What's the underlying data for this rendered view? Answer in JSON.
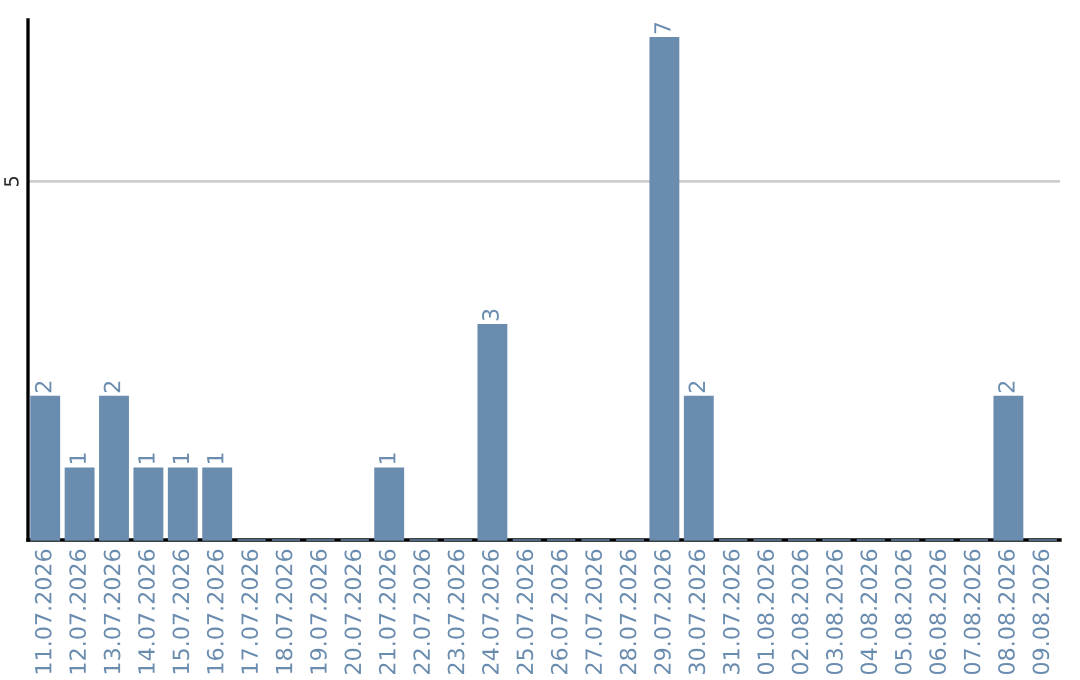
{
  "chart_data": {
    "type": "bar",
    "categories": [
      "11.07.2026",
      "12.07.2026",
      "13.07.2026",
      "14.07.2026",
      "15.07.2026",
      "16.07.2026",
      "17.07.2026",
      "18.07.2026",
      "19.07.2026",
      "20.07.2026",
      "21.07.2026",
      "22.07.2026",
      "23.07.2026",
      "24.07.2026",
      "25.07.2026",
      "26.07.2026",
      "27.07.2026",
      "28.07.2026",
      "29.07.2026",
      "30.07.2026",
      "31.07.2026",
      "01.08.2026",
      "02.08.2026",
      "03.08.2026",
      "04.08.2026",
      "05.08.2026",
      "06.08.2026",
      "07.08.2026",
      "08.08.2026",
      "09.08.2026"
    ],
    "values": [
      2,
      1,
      2,
      1,
      1,
      1,
      0,
      0,
      0,
      0,
      1,
      0,
      0,
      3,
      0,
      0,
      0,
      0,
      7,
      2,
      0,
      0,
      0,
      0,
      0,
      0,
      0,
      0,
      2,
      0
    ],
    "value_labels": [
      "2",
      "1",
      "2",
      "1",
      "1",
      "1",
      null,
      null,
      null,
      null,
      "1",
      null,
      null,
      "3",
      null,
      null,
      null,
      null,
      "7",
      "2",
      null,
      null,
      null,
      null,
      null,
      null,
      null,
      null,
      "2",
      null
    ],
    "color": "#6a8caf",
    "ylim": [
      0,
      7.25
    ],
    "yticks": [
      5
    ],
    "grid": "y"
  }
}
